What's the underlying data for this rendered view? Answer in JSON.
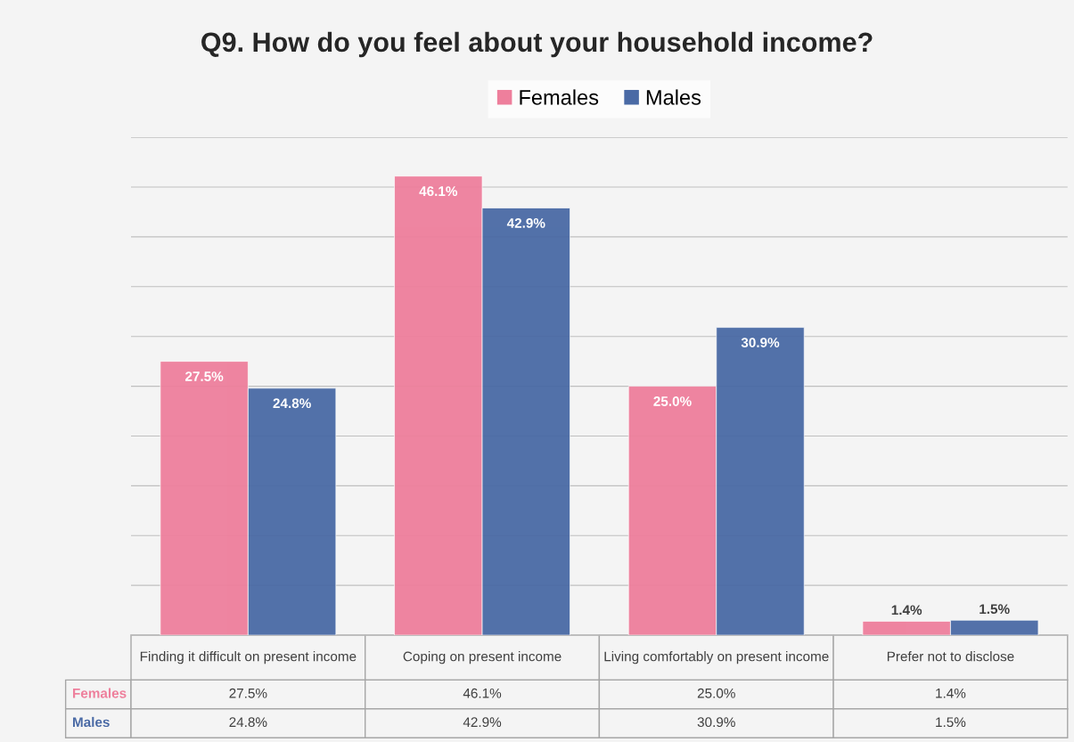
{
  "chart_data": {
    "type": "bar",
    "title": "Q9. How do you feel about your household income?",
    "categories": [
      "Finding it difficult on present income",
      "Coping on present income",
      "Living comfortably on present income",
      "Prefer not to disclose"
    ],
    "series": [
      {
        "name": "Females",
        "color": "#ee7f9c",
        "values": [
          27.5,
          46.1,
          25.0,
          1.4
        ],
        "value_labels": [
          "27.5%",
          "46.1%",
          "25.0%",
          "1.4%"
        ]
      },
      {
        "name": "Males",
        "color": "#4a6aa5",
        "values": [
          24.8,
          42.9,
          30.9,
          1.5
        ],
        "value_labels": [
          "24.8%",
          "42.9%",
          "30.9%",
          "1.5%"
        ]
      }
    ],
    "ylim": [
      0,
      50
    ],
    "yticks": [
      {
        "value": 0,
        "label": null
      },
      {
        "value": 5,
        "label": null
      },
      {
        "value": 10,
        "label": null
      },
      {
        "value": 15,
        "label": null
      },
      {
        "value": 20,
        "label": null
      },
      {
        "value": 25,
        "label": null
      },
      {
        "value": 30,
        "label": null
      },
      {
        "value": 35,
        "label": null
      },
      {
        "value": 40,
        "label": null
      },
      {
        "value": 45,
        "label": null
      },
      {
        "value": 50,
        "label": null
      }
    ],
    "grid": "y",
    "legend": "top",
    "tick_labels": "x"
  }
}
